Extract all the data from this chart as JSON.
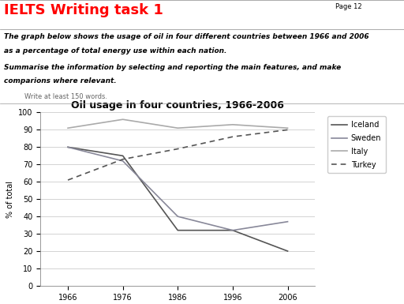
{
  "title": "Oil usage in four countries, 1966-2006",
  "ylabel": "% of total",
  "years": [
    1966,
    1976,
    1986,
    1996,
    2006
  ],
  "iceland": [
    80,
    75,
    32,
    32,
    20
  ],
  "sweden": [
    80,
    72,
    40,
    32,
    37
  ],
  "italy": [
    91,
    96,
    91,
    93,
    91
  ],
  "turkey": [
    61,
    73,
    79,
    86,
    90
  ],
  "iceland_color": "#555555",
  "sweden_color": "#888899",
  "italy_color": "#aaaaaa",
  "turkey_color": "#555555",
  "ylim": [
    0,
    100
  ],
  "yticks": [
    0,
    10,
    20,
    30,
    40,
    50,
    60,
    70,
    80,
    90,
    100
  ],
  "xticks": [
    1966,
    1976,
    1986,
    1996,
    2006
  ],
  "background_color": "#ffffff",
  "header_title": "IELTS Writing task 1",
  "page_label": "Page 12",
  "desc1": "The graph below shows the usage of oil in four different countries between 1966 and 2006",
  "desc1b": "as a percentage of total energy use within each nation.",
  "desc2": "Summarise the information by selecting and reporting the main features, and make",
  "desc2b": "comparions where relevant.",
  "note": "Write at least 150 words.",
  "title_fontsize": 9,
  "header_fontsize": 13,
  "desc_fontsize": 6.5,
  "note_fontsize": 6,
  "tick_fontsize": 7,
  "ylabel_fontsize": 7,
  "legend_fontsize": 7
}
